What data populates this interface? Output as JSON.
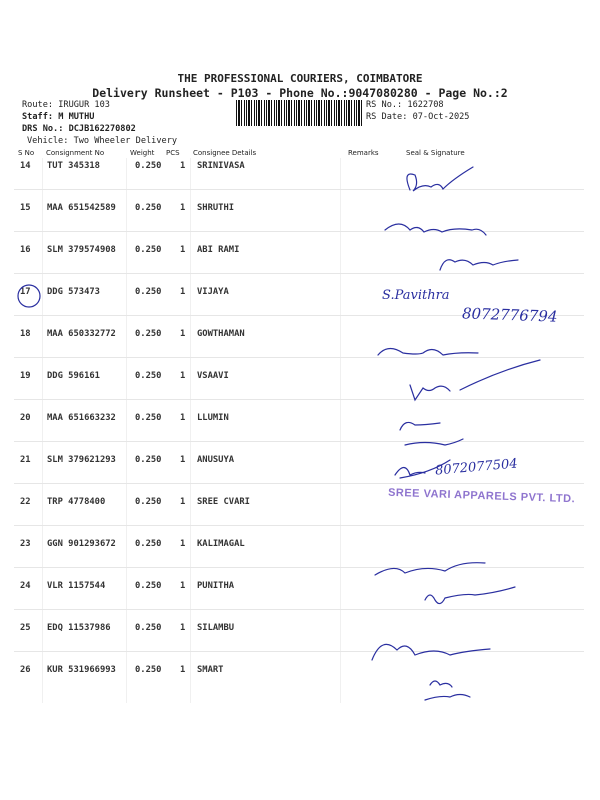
{
  "header": {
    "company": "THE PROFESSIONAL COURIERS, COIMBATORE",
    "subtitle": "Delivery Runsheet - P103 - Phone No.:9047080280 - Page No.:2",
    "route": "Route: IRUGUR 103",
    "staff": "Staff: M MUTHU",
    "drs_no": "DRS No.: DCJB162270802",
    "vehicle": "Vehicle: Two Wheeler Delivery",
    "rs_no": "RS No.: 1622708",
    "rs_date": "RS Date: 07-Oct-2025"
  },
  "columns": {
    "sno": "S No",
    "consignment": "Consignment No",
    "weight": "Weight",
    "pcs": "PCS",
    "consignee": "Consignee Details",
    "remarks": "Remarks",
    "seal": "Seal & Signature"
  },
  "rows": [
    {
      "sno": "14",
      "consignment": "TUT 345318",
      "weight": "0.250",
      "pcs": "1",
      "consignee": "SRINIVASA"
    },
    {
      "sno": "15",
      "consignment": "MAA 651542589",
      "weight": "0.250",
      "pcs": "1",
      "consignee": "SHRUTHI"
    },
    {
      "sno": "16",
      "consignment": "SLM 379574908",
      "weight": "0.250",
      "pcs": "1",
      "consignee": "ABI RAMI"
    },
    {
      "sno": "17",
      "consignment": "DDG 573473",
      "weight": "0.250",
      "pcs": "1",
      "consignee": "VIJAYA"
    },
    {
      "sno": "18",
      "consignment": "MAA 650332772",
      "weight": "0.250",
      "pcs": "1",
      "consignee": "GOWTHAMAN"
    },
    {
      "sno": "19",
      "consignment": "DDG 596161",
      "weight": "0.250",
      "pcs": "1",
      "consignee": "VSAAVI"
    },
    {
      "sno": "20",
      "consignment": "MAA 651663232",
      "weight": "0.250",
      "pcs": "1",
      "consignee": "LLUMIN"
    },
    {
      "sno": "21",
      "consignment": "SLM 379621293",
      "weight": "0.250",
      "pcs": "1",
      "consignee": "ANUSUYA"
    },
    {
      "sno": "22",
      "consignment": "TRP 4778400",
      "weight": "0.250",
      "pcs": "1",
      "consignee": "SREE CVARI"
    },
    {
      "sno": "23",
      "consignment": "GGN 901293672",
      "weight": "0.250",
      "pcs": "1",
      "consignee": "KALIMAGAL"
    },
    {
      "sno": "24",
      "consignment": "VLR 1157544",
      "weight": "0.250",
      "pcs": "1",
      "consignee": "PUNITHA"
    },
    {
      "sno": "25",
      "consignment": "EDQ 11537986",
      "weight": "0.250",
      "pcs": "1",
      "consignee": "SILAMBU"
    },
    {
      "sno": "26",
      "consignment": "KUR 531966993",
      "weight": "0.250",
      "pcs": "1",
      "consignee": "SMART"
    }
  ],
  "handwriting": {
    "vijaya_name": "S.Pavithra",
    "vijaya_phone": "8072776794",
    "anusuya_phone": "8072077504"
  },
  "stamp": {
    "text": "SREE VARI APPARELS PVT. LTD."
  },
  "colors": {
    "ink": "#2a2fa0",
    "stamp": "#7b5cc6",
    "text": "#222222"
  }
}
